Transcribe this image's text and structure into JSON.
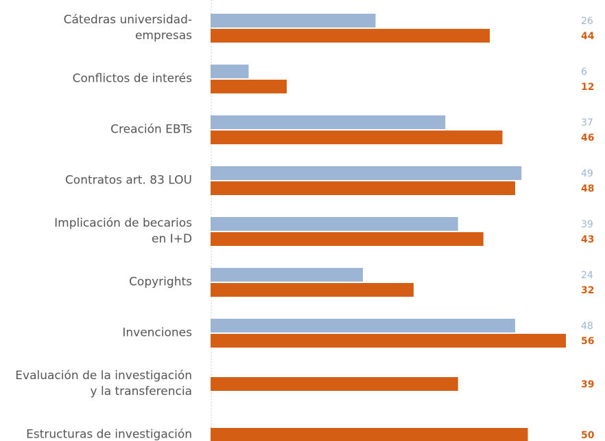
{
  "chart_data": {
    "type": "bar",
    "orientation": "horizontal",
    "categories": [
      "Cátedras universidad-\nempresas",
      "Conflictos de interés",
      "Creación EBTs",
      "Contratos art. 83 LOU",
      "Implicación de becarios\nen I+D",
      "Copyrights",
      "Invenciones",
      "Evaluación de la investigación\ny la transferencia",
      "Estructuras de investigación"
    ],
    "series": [
      {
        "color": "#9db5d4",
        "values": [
          26,
          6,
          37,
          49,
          39,
          24,
          48,
          null,
          null
        ]
      },
      {
        "color": "#d45f14",
        "values": [
          44,
          12,
          46,
          48,
          43,
          32,
          56,
          39,
          50
        ]
      }
    ]
  }
}
